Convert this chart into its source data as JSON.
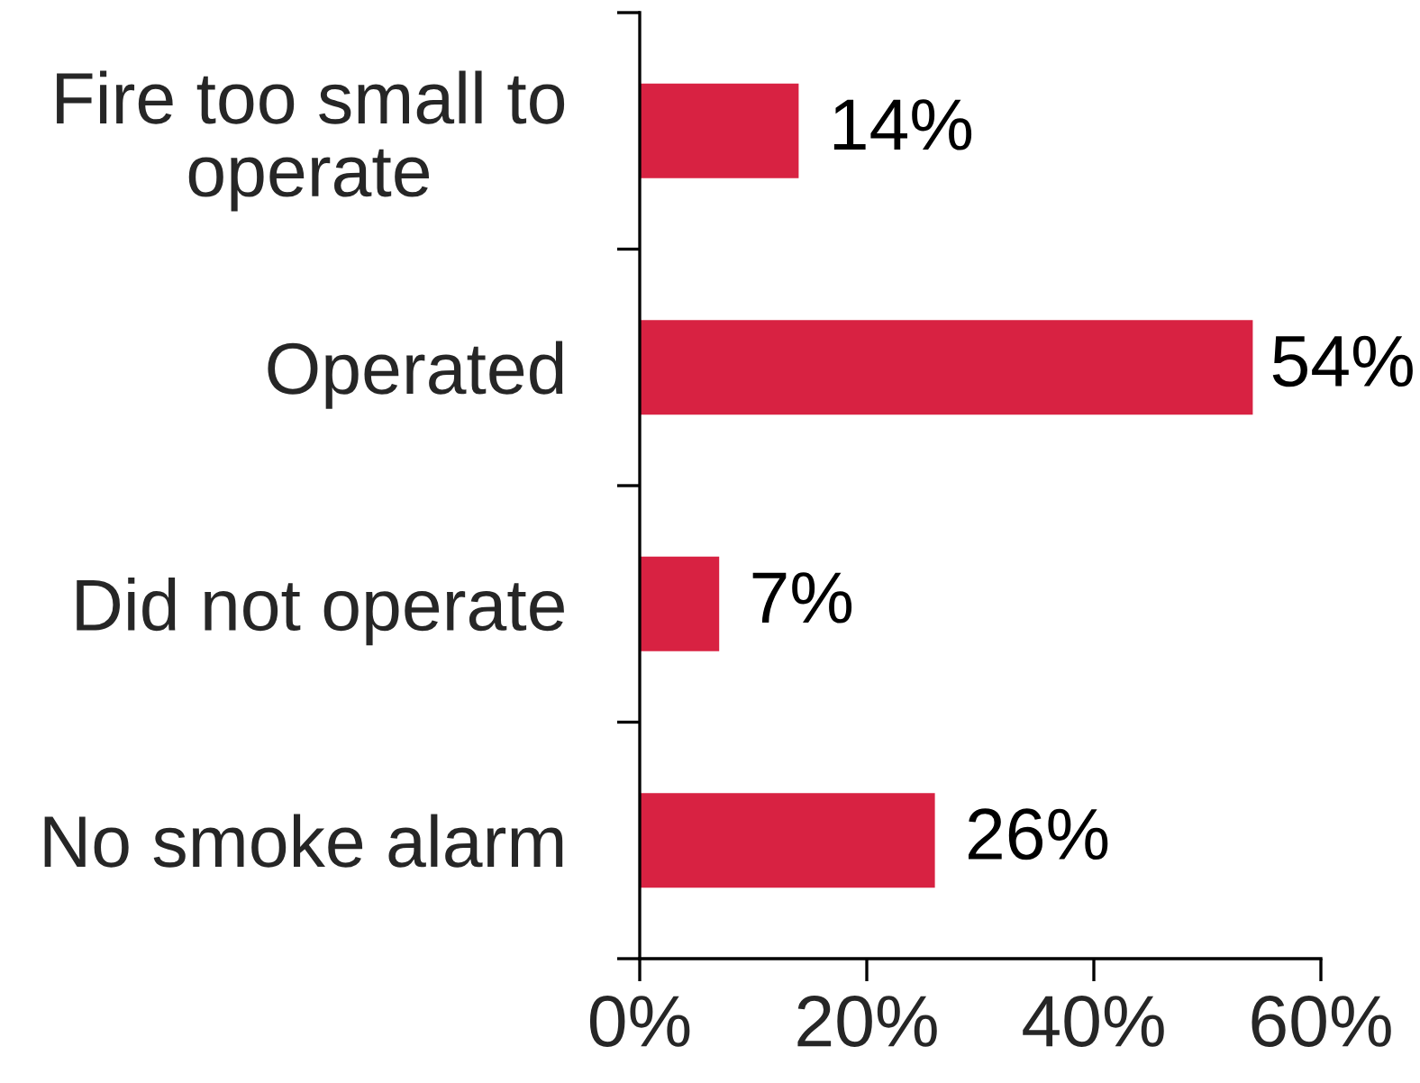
{
  "chart_data": {
    "type": "bar",
    "orientation": "horizontal",
    "categories": [
      "Fire too small to\noperate",
      "Operated",
      "Did not operate",
      "No smoke alarm"
    ],
    "values": [
      14,
      54,
      7,
      26
    ],
    "value_labels": [
      "14%",
      "54%",
      "7%",
      "26%"
    ],
    "color": "#d82242",
    "xlim": [
      0,
      60
    ],
    "xticks": [
      {
        "value": 0,
        "label": "0%"
      },
      {
        "value": 20,
        "label": "20%"
      },
      {
        "value": 40,
        "label": "40%"
      },
      {
        "value": 60,
        "label": "60%"
      }
    ]
  }
}
